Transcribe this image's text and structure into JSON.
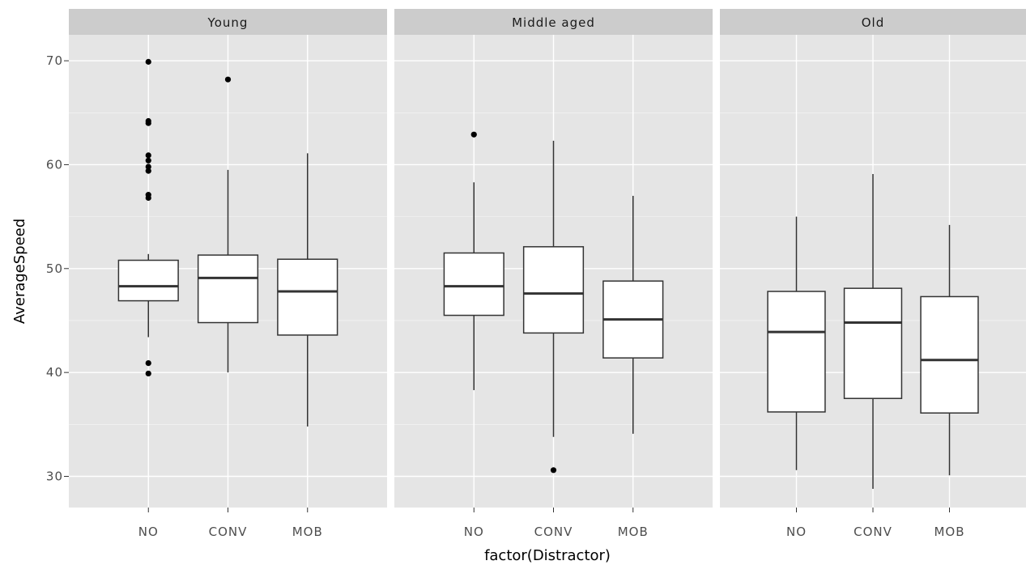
{
  "chart_data": {
    "type": "boxplot",
    "xlabel": "factor(Distractor)",
    "ylabel": "AverageSpeed",
    "ylim": [
      27.0,
      72.5
    ],
    "yticks": [
      30,
      40,
      50,
      60,
      70
    ],
    "categories": [
      "NO",
      "CONV",
      "MOB"
    ],
    "grid": true,
    "colors": {
      "panel_bg": "#e5e5e5",
      "strip_bg": "#cccccc",
      "grid": "#ffffff",
      "box_fill": "#ffffff",
      "box_stroke": "#333333",
      "outlier": "#000000"
    },
    "facets": [
      {
        "label": "Young",
        "boxes": [
          {
            "category": "NO",
            "min": 43.4,
            "q1": 46.9,
            "median": 48.3,
            "q3": 50.8,
            "max": 51.4,
            "outliers": [
              69.9,
              64.2,
              64.0,
              60.9,
              60.4,
              59.8,
              59.4,
              57.1,
              56.8,
              40.9,
              39.9
            ]
          },
          {
            "category": "CONV",
            "min": 40.0,
            "q1": 44.8,
            "median": 49.1,
            "q3": 51.3,
            "max": 59.5,
            "outliers": [
              68.2
            ]
          },
          {
            "category": "MOB",
            "min": 34.8,
            "q1": 43.6,
            "median": 47.8,
            "q3": 50.9,
            "max": 61.1,
            "outliers": []
          }
        ]
      },
      {
        "label": "Middle aged",
        "boxes": [
          {
            "category": "NO",
            "min": 38.3,
            "q1": 45.5,
            "median": 48.3,
            "q3": 51.5,
            "max": 58.3,
            "outliers": [
              62.9
            ]
          },
          {
            "category": "CONV",
            "min": 33.8,
            "q1": 43.8,
            "median": 47.6,
            "q3": 52.1,
            "max": 62.3,
            "outliers": [
              30.6
            ]
          },
          {
            "category": "MOB",
            "min": 34.1,
            "q1": 41.4,
            "median": 45.1,
            "q3": 48.8,
            "max": 57.0,
            "outliers": []
          }
        ]
      },
      {
        "label": "Old",
        "boxes": [
          {
            "category": "NO",
            "min": 30.6,
            "q1": 36.2,
            "median": 43.9,
            "q3": 47.8,
            "max": 55.0,
            "outliers": []
          },
          {
            "category": "CONV",
            "min": 28.8,
            "q1": 37.5,
            "median": 44.8,
            "q3": 48.1,
            "max": 59.1,
            "outliers": []
          },
          {
            "category": "MOB",
            "min": 30.1,
            "q1": 36.1,
            "median": 41.2,
            "q3": 47.3,
            "max": 54.2,
            "outliers": []
          }
        ]
      }
    ]
  }
}
